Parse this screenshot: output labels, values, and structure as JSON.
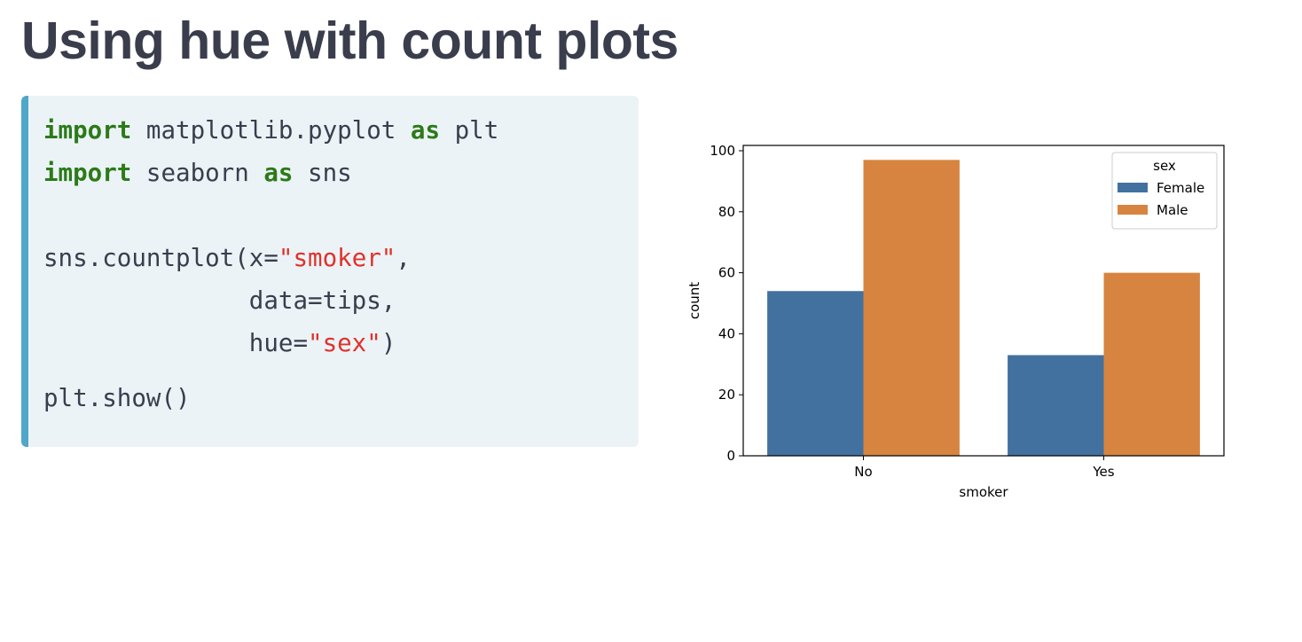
{
  "slide": {
    "title": "Using hue with count plots"
  },
  "code": {
    "lines": [
      [
        {
          "t": "import",
          "k": "kw"
        },
        {
          "t": " matplotlib.pyplot ",
          "k": "plain"
        },
        {
          "t": "as",
          "k": "kw"
        },
        {
          "t": " plt",
          "k": "plain"
        }
      ],
      [
        {
          "t": "import",
          "k": "kw"
        },
        {
          "t": " seaborn ",
          "k": "plain"
        },
        {
          "t": "as",
          "k": "kw"
        },
        {
          "t": " sns",
          "k": "plain"
        }
      ],
      [],
      [
        {
          "t": "sns.countplot(x=",
          "k": "plain"
        },
        {
          "t": "\"smoker\"",
          "k": "str"
        },
        {
          "t": ",",
          "k": "plain"
        }
      ],
      [
        {
          "t": "              data=tips,",
          "k": "plain"
        }
      ],
      [
        {
          "t": "              hue=",
          "k": "plain"
        },
        {
          "t": "\"sex\"",
          "k": "str"
        },
        {
          "t": ")",
          "k": "plain"
        }
      ],
      [
        {
          "t": "plt.show()",
          "k": "plain"
        }
      ]
    ]
  },
  "colors": {
    "title": "#3a3d4c",
    "code_bg": "#ebf3f7",
    "code_border": "#4fa7ca",
    "keyword": "#2c7a18",
    "string": "#e0322a"
  },
  "chart_data": {
    "type": "bar",
    "categories": [
      "No",
      "Yes"
    ],
    "series": [
      {
        "name": "Female",
        "values": [
          54,
          33
        ],
        "color": "#4271a0"
      },
      {
        "name": "Male",
        "values": [
          97,
          60
        ],
        "color": "#d6843f"
      }
    ],
    "xlabel": "smoker",
    "ylabel": "count",
    "ylim": [
      0,
      100
    ],
    "yticks": [
      0,
      20,
      40,
      60,
      80,
      100
    ],
    "legend_title": "sex",
    "legend_position": "top-right",
    "grid": false
  }
}
